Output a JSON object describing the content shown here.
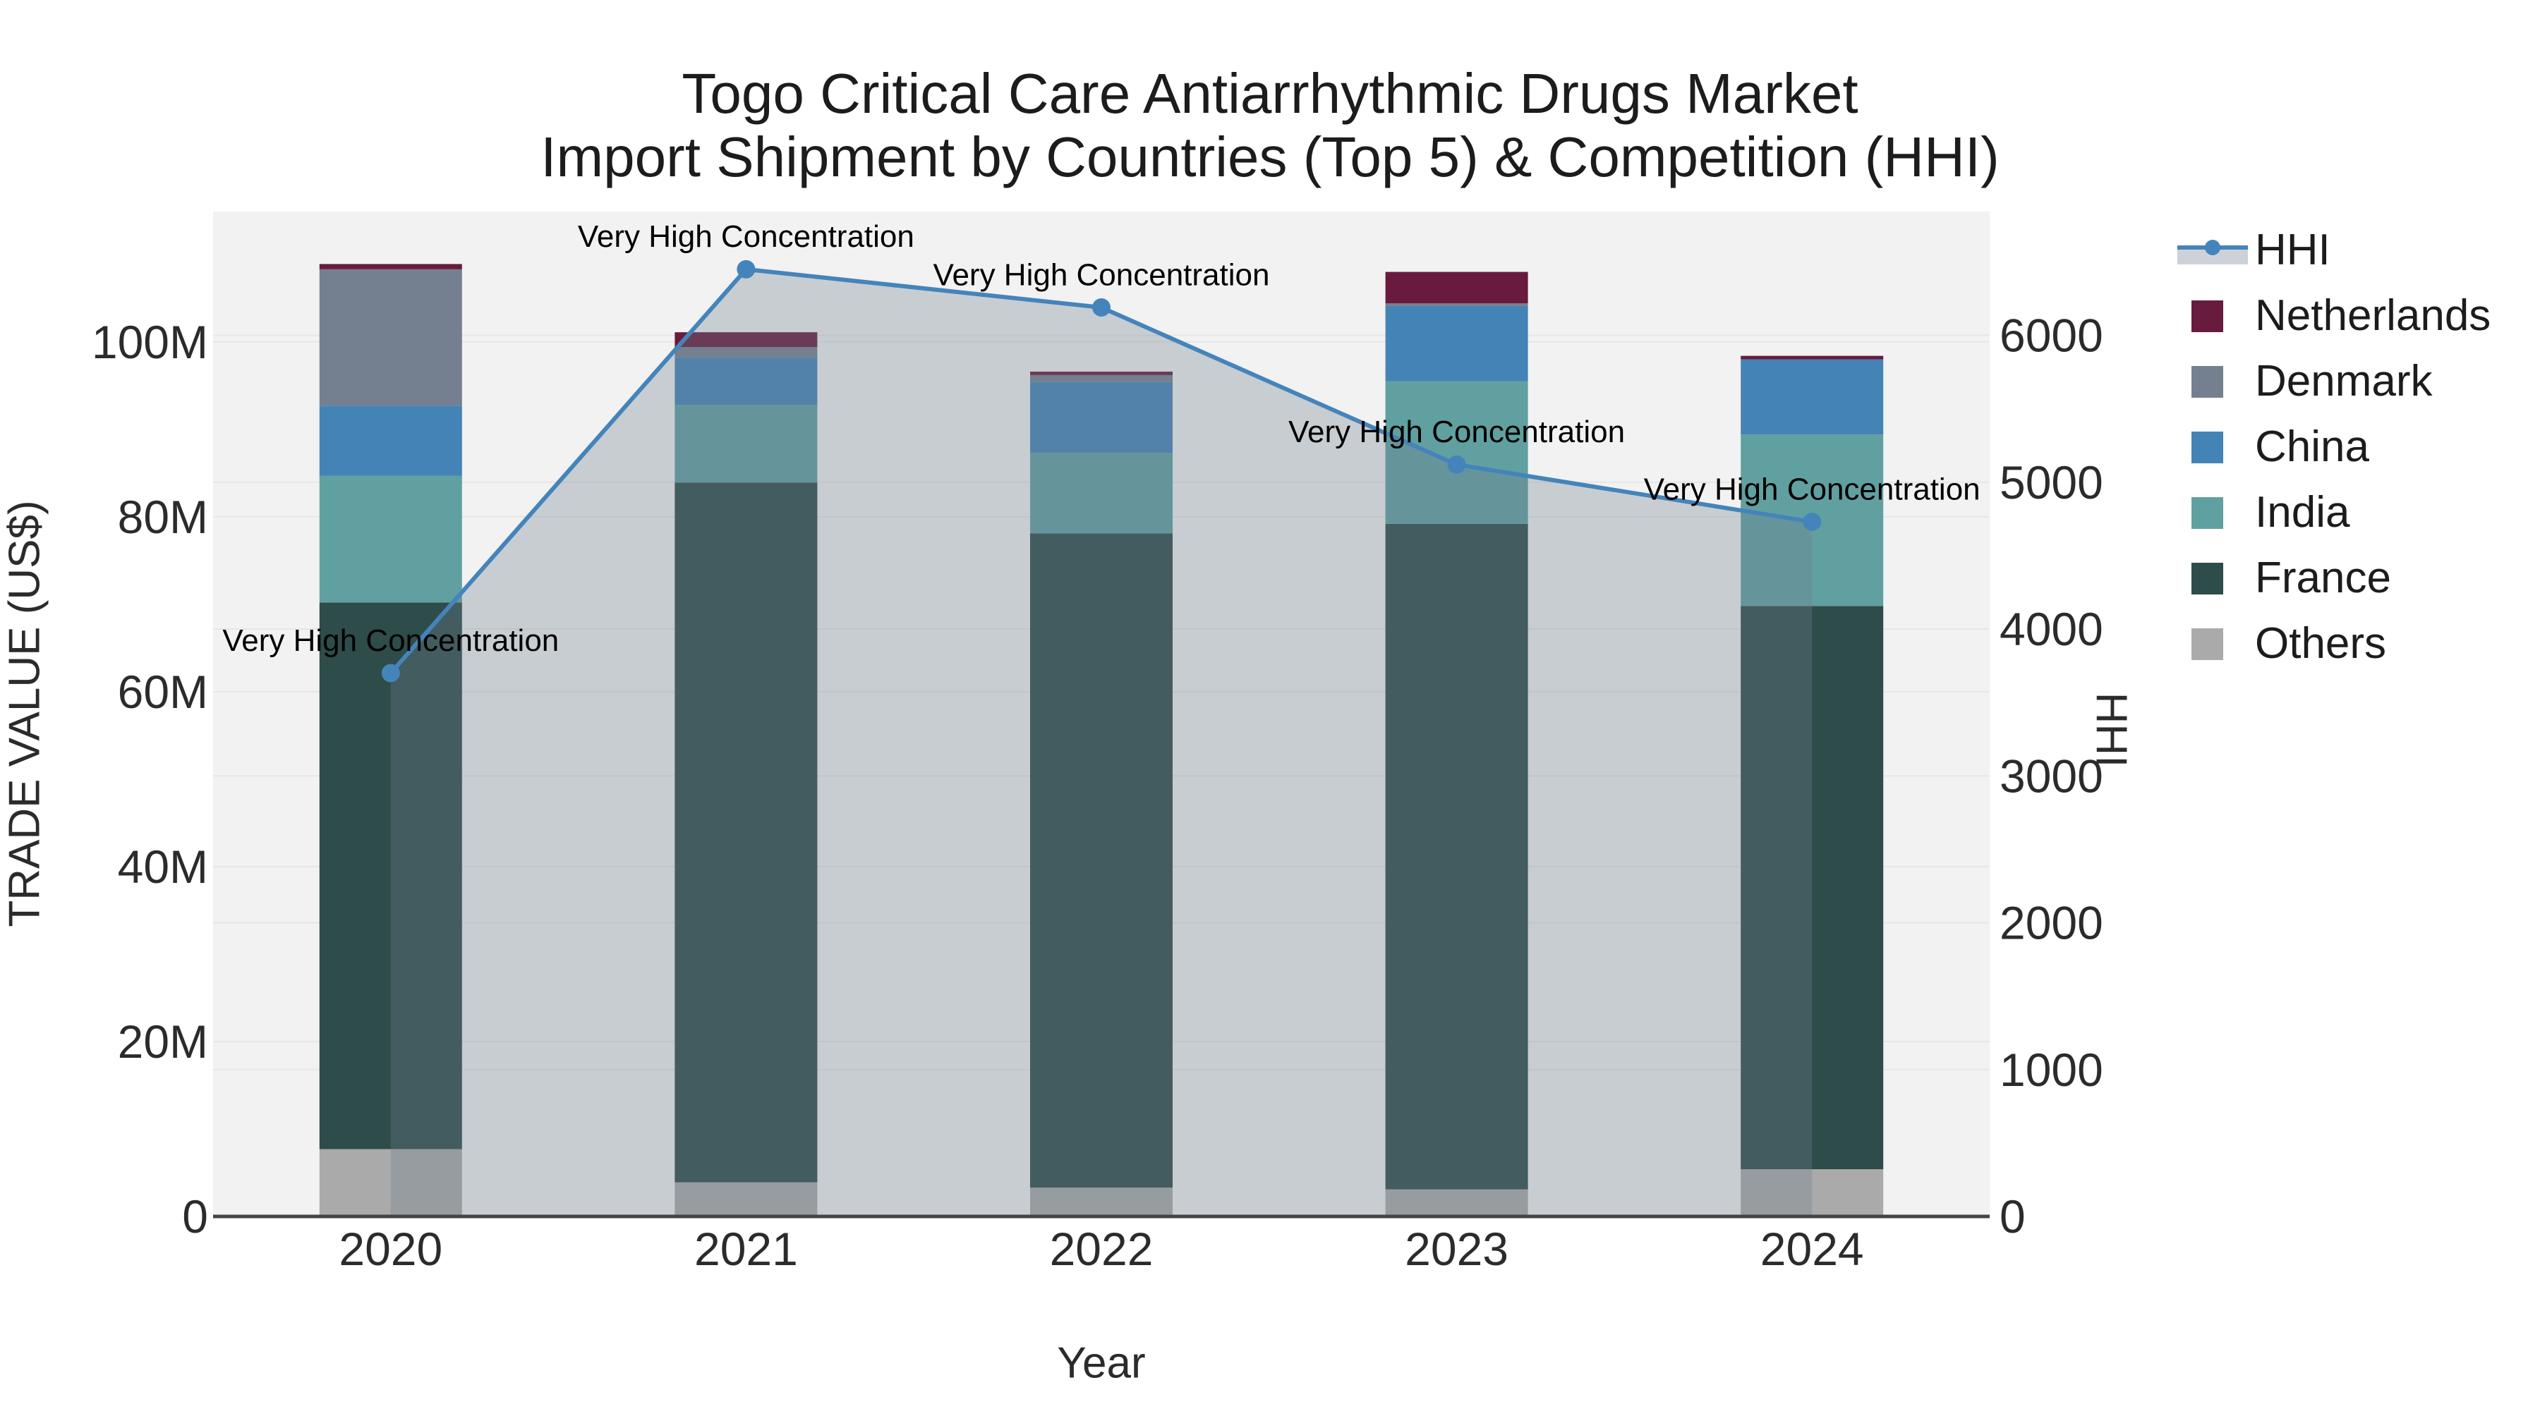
{
  "title": {
    "line1": "Togo Critical Care Antiarrhythmic Drugs Market",
    "line2": "Import Shipment by Countries (Top 5) & Competition (HHI)"
  },
  "axes": {
    "x_title": "Year",
    "y_left_title": "TRADE VALUE (US$)",
    "y_left_tick_labels": [
      "0",
      "20M",
      "40M",
      "60M",
      "80M",
      "100M"
    ],
    "y_left_tick_values": [
      0,
      20,
      40,
      60,
      80,
      100
    ],
    "y_left_max": 114.9,
    "y_right_title": "HHI",
    "y_right_tick_labels": [
      "0",
      "1000",
      "2000",
      "3000",
      "4000",
      "5000",
      "6000"
    ],
    "y_right_tick_values": [
      0,
      1000,
      2000,
      3000,
      4000,
      5000,
      6000
    ],
    "y_right_max": 6843
  },
  "chart_data": {
    "type": "bar+line",
    "categories": [
      "2020",
      "2021",
      "2022",
      "2023",
      "2024"
    ],
    "bar_value_unit": "million US$",
    "stack_order_bottom_to_top": [
      "Others",
      "France",
      "India",
      "China",
      "Denmark",
      "Netherlands"
    ],
    "series": [
      {
        "name": "Others",
        "color": "#aaaaaa",
        "values": [
          7.7,
          3.9,
          3.3,
          3.1,
          5.4
        ]
      },
      {
        "name": "France",
        "color": "#2e4c49",
        "values": [
          62.5,
          80.0,
          74.8,
          76.1,
          64.4
        ]
      },
      {
        "name": "India",
        "color": "#61a0a0",
        "values": [
          14.5,
          8.9,
          9.2,
          16.3,
          19.6
        ]
      },
      {
        "name": "China",
        "color": "#4483b5",
        "values": [
          8.0,
          5.4,
          8.1,
          8.6,
          8.6
        ]
      },
      {
        "name": "Denmark",
        "color": "#74808f",
        "values": [
          15.6,
          1.2,
          0.8,
          0.3,
          0.0
        ]
      },
      {
        "name": "Netherlands",
        "color": "#681b3d",
        "values": [
          0.6,
          1.7,
          0.4,
          3.6,
          0.4
        ]
      }
    ],
    "bar_totals": [
      108.9,
      101.1,
      96.6,
      108.0,
      98.4
    ],
    "line": {
      "name": "HHI",
      "axis": "right",
      "values": [
        3700,
        6450,
        6190,
        5120,
        4730
      ],
      "area_fill": true
    },
    "annotations": [
      "Very High Concentration",
      "Very High Concentration",
      "Very High Concentration",
      "Very High Concentration",
      "Very High Concentration"
    ],
    "grid": true,
    "legend_position": "right"
  },
  "legend": {
    "items": [
      {
        "label": "HHI",
        "symbol": "line"
      },
      {
        "label": "Netherlands",
        "symbol": "square",
        "color": "#681b3d"
      },
      {
        "label": "Denmark",
        "symbol": "square",
        "color": "#74808f"
      },
      {
        "label": "China",
        "symbol": "square",
        "color": "#4483b5"
      },
      {
        "label": "India",
        "symbol": "square",
        "color": "#61a0a0"
      },
      {
        "label": "France",
        "symbol": "square",
        "color": "#2e4c49"
      },
      {
        "label": "Others",
        "symbol": "square",
        "color": "#aaaaaa"
      }
    ]
  },
  "colors": {
    "hhi_line": "#4484bb",
    "hhi_fill": "rgba(112,128,144,0.32)",
    "legend_fill_swatch": "#cdd2d9",
    "plot_bg": "#f2f2f2",
    "gridline": "#e6e6e6",
    "axis_line": "#444444",
    "tick_text": "#2b2b2b",
    "annotation_text": "#000000"
  }
}
